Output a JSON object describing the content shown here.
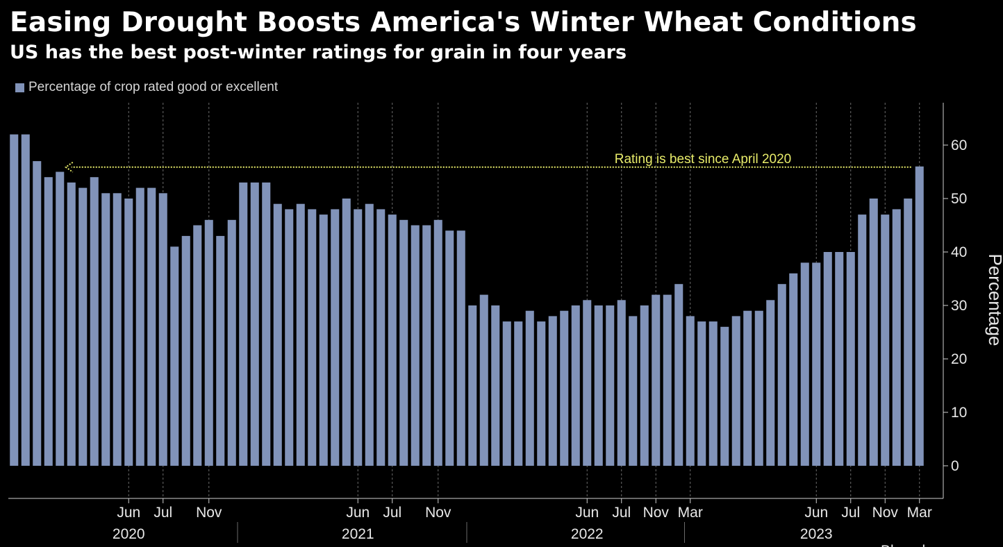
{
  "chart_data": {
    "type": "bar",
    "title": "Easing Drought Boosts America's Winter Wheat Conditions",
    "subtitle": "US has the best post-winter ratings for grain in four years",
    "legend": [
      "Percentage of crop rated good or excellent"
    ],
    "series": [
      {
        "name": "Percentage of crop rated good or excellent",
        "color": "#8193b9",
        "values": [
          62,
          62,
          57,
          54,
          55,
          53,
          52,
          54,
          51,
          51,
          50,
          52,
          52,
          51,
          41,
          43,
          45,
          46,
          43,
          46,
          53,
          53,
          53,
          49,
          48,
          49,
          48,
          47,
          48,
          50,
          48,
          49,
          48,
          47,
          46,
          45,
          45,
          46,
          44,
          44,
          30,
          32,
          30,
          27,
          27,
          29,
          27,
          28,
          29,
          30,
          31,
          30,
          30,
          31,
          28,
          30,
          32,
          32,
          34,
          28,
          27,
          27,
          26,
          28,
          29,
          29,
          31,
          34,
          36,
          38,
          38,
          40,
          40,
          40,
          47,
          50,
          47,
          48,
          50,
          56
        ]
      }
    ],
    "ylabel": "Percentage",
    "ylim": [
      0,
      62
    ],
    "yticks": [
      "0",
      "10",
      "20",
      "30",
      "40",
      "50",
      "60"
    ],
    "grid": "vertical dashed",
    "legend_position": "top-left",
    "x_ticks": [
      {
        "label": "Jun",
        "bar": 10
      },
      {
        "label": "Jul",
        "bar": 13
      },
      {
        "label": "Nov",
        "bar": 17
      },
      {
        "label": "Jun",
        "bar": 30
      },
      {
        "label": "Jul",
        "bar": 33
      },
      {
        "label": "Nov",
        "bar": 37
      },
      {
        "label": "Jun",
        "bar": 50
      },
      {
        "label": "Jul",
        "bar": 53
      },
      {
        "label": "Nov",
        "bar": 56
      },
      {
        "label": "Mar",
        "bar": 59
      },
      {
        "label": "Jun",
        "bar": 70
      },
      {
        "label": "Jul",
        "bar": 73
      },
      {
        "label": "Nov",
        "bar": 76
      },
      {
        "label": "Mar",
        "bar": 79
      }
    ],
    "years": [
      {
        "label": "2020",
        "bar": 10
      },
      {
        "label": "2021",
        "bar": 30
      },
      {
        "label": "2022",
        "bar": 50
      },
      {
        "label": "2023",
        "bar": 70
      }
    ],
    "year_dividers": [
      19.5,
      39.5,
      58.5
    ],
    "annotation": {
      "text": "Rating is best since April 2020",
      "value": 56,
      "from_bar": 79,
      "to_bar": 5,
      "color": "#e8ec6a"
    },
    "source": "Bloomberg"
  }
}
